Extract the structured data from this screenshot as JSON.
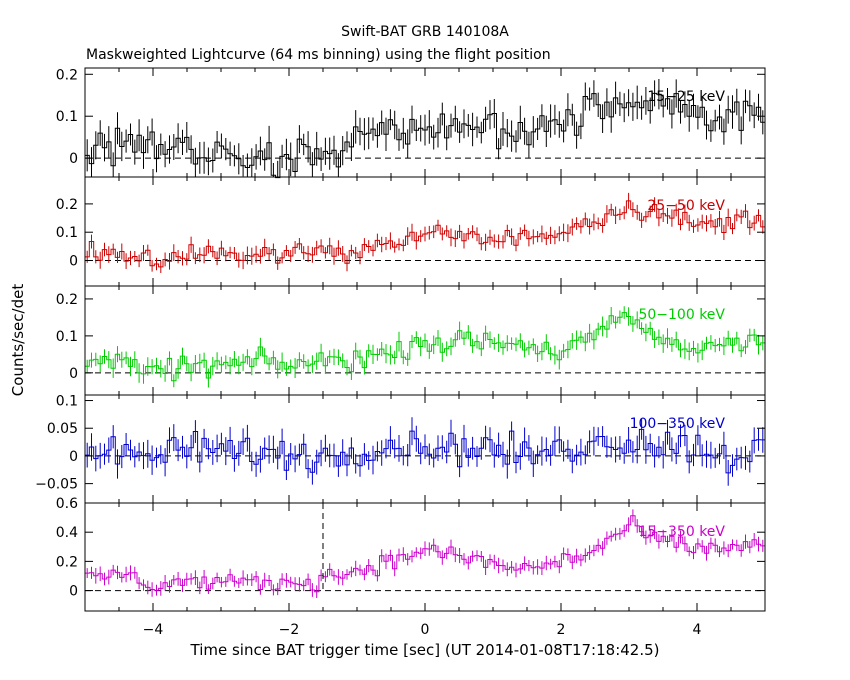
{
  "figure": {
    "title": "Swift-BAT GRB 140108A",
    "subtitle": "Maskweighted Lightcurve (64 ms binning) using the flight position",
    "xlabel": "Time since BAT trigger time [sec] (UT 2014-01-08T17:18:42.5)",
    "ylabel": "Counts/sec/det"
  },
  "chart_data": [
    {
      "type": "line",
      "name": "15-25 keV",
      "band_label": "15−25 keV",
      "color": "#000000",
      "xlim": [
        -5,
        5
      ],
      "ylim": [
        -0.045,
        0.215
      ],
      "yticks": [
        0,
        0.1,
        0.2
      ],
      "ytick_labels": [
        "0",
        "0.1",
        "0.2"
      ],
      "noise": 0.045,
      "envelope": [
        [
          -5,
          0.02
        ],
        [
          -4.5,
          0.045
        ],
        [
          -4.0,
          0.05
        ],
        [
          -3.5,
          0.025
        ],
        [
          -3.0,
          0.0
        ],
        [
          -2.5,
          -0.01
        ],
        [
          -2.0,
          0.01
        ],
        [
          -1.5,
          0.02
        ],
        [
          -1.0,
          0.045
        ],
        [
          -0.5,
          0.05
        ],
        [
          0,
          0.075
        ],
        [
          0.5,
          0.07
        ],
        [
          1.0,
          0.07
        ],
        [
          1.5,
          0.075
        ],
        [
          2.0,
          0.085
        ],
        [
          2.5,
          0.1
        ],
        [
          3.0,
          0.13
        ],
        [
          3.5,
          0.12
        ],
        [
          4.0,
          0.105
        ],
        [
          4.5,
          0.1
        ],
        [
          5.0,
          0.105
        ]
      ]
    },
    {
      "type": "line",
      "name": "25-50 keV",
      "band_label": "25−50 keV",
      "color": "#cc0000",
      "xlim": [
        -5,
        5
      ],
      "ylim": [
        -0.09,
        0.295
      ],
      "yticks": [
        0,
        0.1,
        0.2
      ],
      "ytick_labels": [
        "0",
        "0.1",
        "0.2"
      ],
      "noise": 0.035,
      "envelope": [
        [
          -5,
          0.03
        ],
        [
          -4.5,
          0.04
        ],
        [
          -4.0,
          0.0
        ],
        [
          -3.5,
          0.01
        ],
        [
          -3.0,
          0.03
        ],
        [
          -2.5,
          0.02
        ],
        [
          -2.0,
          0.03
        ],
        [
          -1.5,
          0.03
        ],
        [
          -1.0,
          0.04
        ],
        [
          -0.5,
          0.06
        ],
        [
          0,
          0.09
        ],
        [
          0.5,
          0.09
        ],
        [
          1.0,
          0.07
        ],
        [
          1.5,
          0.08
        ],
        [
          2.0,
          0.11
        ],
        [
          2.5,
          0.15
        ],
        [
          3.0,
          0.19
        ],
        [
          3.5,
          0.17
        ],
        [
          4.0,
          0.12
        ],
        [
          4.5,
          0.14
        ],
        [
          5.0,
          0.15
        ]
      ]
    },
    {
      "type": "line",
      "name": "50-100 keV",
      "band_label": "50−100 keV",
      "color": "#00cc00",
      "xlim": [
        -5,
        5
      ],
      "ylim": [
        -0.06,
        0.235
      ],
      "yticks": [
        0,
        0.1,
        0.2
      ],
      "ytick_labels": [
        "0",
        "0.1",
        "0.2"
      ],
      "noise": 0.03,
      "envelope": [
        [
          -5,
          0.04
        ],
        [
          -4.5,
          0.03
        ],
        [
          -4.0,
          0.0
        ],
        [
          -3.5,
          0.02
        ],
        [
          -3.0,
          0.02
        ],
        [
          -2.5,
          0.03
        ],
        [
          -2.0,
          0.02
        ],
        [
          -1.5,
          0.03
        ],
        [
          -1.0,
          0.04
        ],
        [
          -0.5,
          0.05
        ],
        [
          0,
          0.09
        ],
        [
          0.5,
          0.08
        ],
        [
          1.0,
          0.085
        ],
        [
          1.5,
          0.07
        ],
        [
          2.0,
          0.06
        ],
        [
          2.5,
          0.1
        ],
        [
          3.0,
          0.15
        ],
        [
          3.5,
          0.08
        ],
        [
          4.0,
          0.07
        ],
        [
          4.5,
          0.08
        ],
        [
          5.0,
          0.1
        ]
      ]
    },
    {
      "type": "line",
      "name": "100-350 keV",
      "band_label": "100−350 keV",
      "color": "#0000cc",
      "xlim": [
        -5,
        5
      ],
      "ylim": [
        -0.085,
        0.11
      ],
      "yticks": [
        -0.05,
        0,
        0.05,
        0.1
      ],
      "ytick_labels": [
        "−0.05",
        "0",
        "0.05",
        "0.1"
      ],
      "noise": 0.03,
      "envelope": [
        [
          -5,
          0.01
        ],
        [
          -4.5,
          0.0
        ],
        [
          -4.0,
          0.0
        ],
        [
          -3.5,
          0.01
        ],
        [
          -3.0,
          0.01
        ],
        [
          -2.5,
          0.01
        ],
        [
          -2.0,
          0.0
        ],
        [
          -1.5,
          0.0
        ],
        [
          -1.0,
          0.01
        ],
        [
          -0.5,
          0.02
        ],
        [
          0,
          0.02
        ],
        [
          0.5,
          0.01
        ],
        [
          1.0,
          0.015
        ],
        [
          1.5,
          0.0
        ],
        [
          2.0,
          0.015
        ],
        [
          2.5,
          0.02
        ],
        [
          3.0,
          0.03
        ],
        [
          3.5,
          0.02
        ],
        [
          4.0,
          0.015
        ],
        [
          4.5,
          0.0
        ],
        [
          5.0,
          0.01
        ]
      ]
    },
    {
      "type": "line",
      "name": "15-350 keV",
      "band_label": "15−350 keV",
      "color": "#cc00cc",
      "xlim": [
        -5,
        5
      ],
      "ylim": [
        -0.14,
        0.6
      ],
      "yticks": [
        0,
        0.2,
        0.4,
        0.6
      ],
      "ytick_labels": [
        "0",
        "0.2",
        "0.4",
        "0.6"
      ],
      "noise": 0.06,
      "envelope": [
        [
          -5,
          0.08
        ],
        [
          -4.5,
          0.12
        ],
        [
          -4.0,
          0.04
        ],
        [
          -3.5,
          0.07
        ],
        [
          -3.0,
          0.04
        ],
        [
          -2.5,
          0.05
        ],
        [
          -2.0,
          0.05
        ],
        [
          -1.5,
          0.08
        ],
        [
          -1.0,
          0.14
        ],
        [
          -0.5,
          0.2
        ],
        [
          0,
          0.28
        ],
        [
          0.5,
          0.24
        ],
        [
          1.0,
          0.18
        ],
        [
          1.5,
          0.15
        ],
        [
          2.0,
          0.2
        ],
        [
          2.5,
          0.28
        ],
        [
          3.0,
          0.44
        ],
        [
          3.5,
          0.33
        ],
        [
          4.0,
          0.28
        ],
        [
          4.5,
          0.3
        ],
        [
          5.0,
          0.32
        ]
      ],
      "marker_x": -1.5
    }
  ],
  "xaxis": {
    "ticks": [
      -4,
      -2,
      0,
      2,
      4
    ],
    "tick_labels": [
      "−4",
      "−2",
      "0",
      "2",
      "4"
    ]
  }
}
